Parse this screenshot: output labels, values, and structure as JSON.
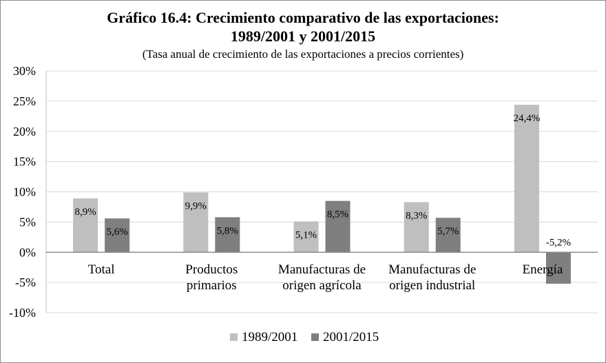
{
  "chart_data": {
    "type": "bar",
    "title_line1": "Gráfico 16.4: Crecimiento comparativo de las exportaciones:",
    "title_line2": "1989/2001 y 2001/2015",
    "subtitle": "(Tasa anual de crecimiento de las exportaciones a precios corrientes)",
    "xlabel": "",
    "ylabel": "",
    "ylim": [
      -10,
      30
    ],
    "yticks": [
      -10,
      -5,
      0,
      5,
      10,
      15,
      20,
      25,
      30
    ],
    "ytick_labels": [
      "-10%",
      "-5%",
      "0%",
      "5%",
      "10%",
      "15%",
      "20%",
      "25%",
      "30%"
    ],
    "categories": [
      [
        "Total"
      ],
      [
        "Productos",
        "primarios"
      ],
      [
        "Manufacturas de",
        "origen agrícola"
      ],
      [
        "Manufacturas de",
        "origen industrial"
      ],
      [
        "Energía"
      ]
    ],
    "series": [
      {
        "name": "1989/2001",
        "color": "#bfbfbf",
        "values": [
          8.9,
          9.9,
          5.1,
          8.3,
          24.4
        ],
        "labels": [
          "8,9%",
          "9,9%",
          "5,1%",
          "8,3%",
          "24,4%"
        ]
      },
      {
        "name": "2001/2015",
        "color": "#7f7f7f",
        "values": [
          5.6,
          5.8,
          8.5,
          5.7,
          -5.2
        ],
        "labels": [
          "5,6%",
          "5,8%",
          "8,5%",
          "5,7%",
          "-5,2%"
        ]
      }
    ],
    "grid": true,
    "legend": "bottom"
  }
}
